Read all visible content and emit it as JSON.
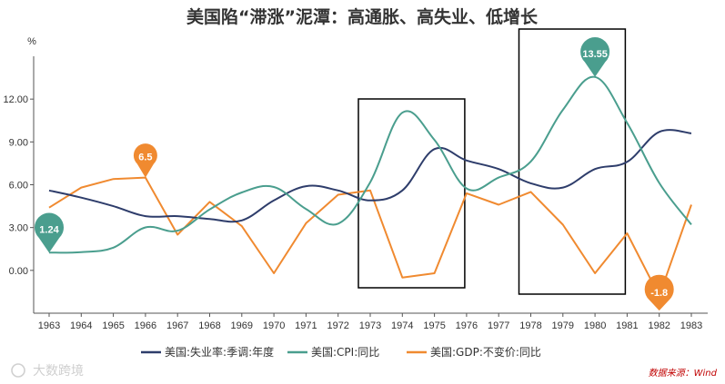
{
  "chart_data": {
    "type": "line",
    "title": "美国陷“滞涨”泥潭：高通胀、高失业、低增长",
    "ylabel": "%",
    "ylim": [
      -3.0,
      15.0
    ],
    "yticks": [
      0.0,
      3.0,
      6.0,
      9.0,
      12.0
    ],
    "ytick_labels": [
      "0.00",
      "3.00",
      "6.00",
      "9.00",
      "12.00"
    ],
    "categories": [
      "1963",
      "1964",
      "1965",
      "1966",
      "1967",
      "1968",
      "1969",
      "1970",
      "1971",
      "1972",
      "1973",
      "1974",
      "1975",
      "1976",
      "1977",
      "1978",
      "1979",
      "1980",
      "1981",
      "1982",
      "1983"
    ],
    "series": [
      {
        "name": "美国:失业率:季调:年度",
        "color": "#2e3d6b",
        "values": [
          5.6,
          5.1,
          4.5,
          3.8,
          3.8,
          3.6,
          3.5,
          4.9,
          5.9,
          5.6,
          4.9,
          5.6,
          8.5,
          7.7,
          7.1,
          6.1,
          5.8,
          7.1,
          7.6,
          9.7,
          9.6
        ]
      },
      {
        "name": "美国:CPI:同比",
        "color": "#4a9e8e",
        "values": [
          1.24,
          1.28,
          1.59,
          3.01,
          2.78,
          4.27,
          5.46,
          5.84,
          4.3,
          3.27,
          6.18,
          11.05,
          9.14,
          5.74,
          6.5,
          7.63,
          11.25,
          13.55,
          10.33,
          6.13,
          3.21
        ]
      },
      {
        "name": "美国:GDP:不变价:同比",
        "color": "#f08a30",
        "values": [
          4.4,
          5.8,
          6.4,
          6.5,
          2.5,
          4.8,
          3.1,
          -0.2,
          3.3,
          5.3,
          5.6,
          -0.5,
          -0.2,
          5.4,
          4.6,
          5.5,
          3.2,
          -0.2,
          2.6,
          -1.8,
          4.6
        ]
      }
    ],
    "annotations": [
      {
        "series": 1,
        "index": 0,
        "label": "1.24"
      },
      {
        "series": 2,
        "index": 3,
        "label": "6.5"
      },
      {
        "series": 1,
        "index": 17,
        "label": "13.55"
      },
      {
        "series": 2,
        "index": 19,
        "label": "-1.8"
      }
    ],
    "highlight_boxes": [
      {
        "from": "1973",
        "to": "1976"
      },
      {
        "from": "1978",
        "to": "1981"
      }
    ],
    "grid": false,
    "legend_position": "bottom"
  },
  "watermark": "大数跨境",
  "source": "数据来源：Wind"
}
